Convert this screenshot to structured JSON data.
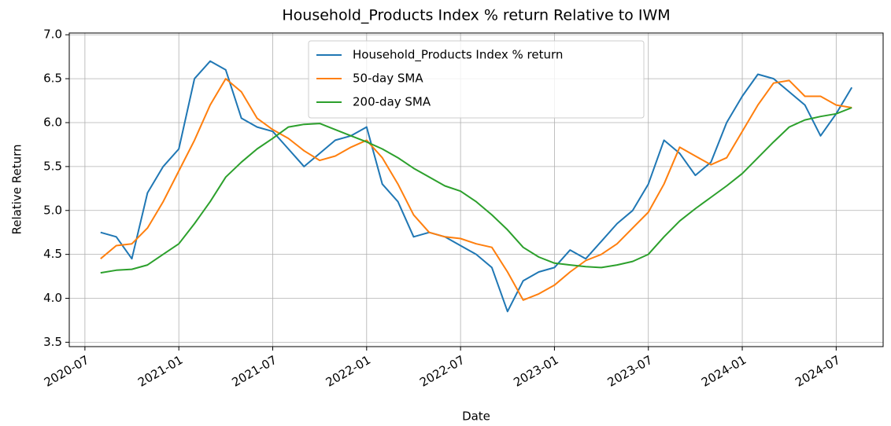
{
  "chart_data": {
    "type": "line",
    "title": "Household_Products Index % return Relative to IWM",
    "xlabel": "Date",
    "ylabel": "Relative Return",
    "x": [
      "2020-08",
      "2020-09",
      "2020-10",
      "2020-11",
      "2020-12",
      "2021-01",
      "2021-02",
      "2021-03",
      "2021-04",
      "2021-05",
      "2021-06",
      "2021-07",
      "2021-08",
      "2021-09",
      "2021-10",
      "2021-11",
      "2021-12",
      "2022-01",
      "2022-02",
      "2022-03",
      "2022-04",
      "2022-05",
      "2022-06",
      "2022-07",
      "2022-08",
      "2022-09",
      "2022-10",
      "2022-11",
      "2022-12",
      "2023-01",
      "2023-02",
      "2023-03",
      "2023-04",
      "2023-05",
      "2023-06",
      "2023-07",
      "2023-08",
      "2023-09",
      "2023-10",
      "2023-11",
      "2023-12",
      "2024-01",
      "2024-02",
      "2024-03",
      "2024-04",
      "2024-05",
      "2024-06",
      "2024-07",
      "2024-08"
    ],
    "series": [
      {
        "name": "Household_Products Index % return",
        "color": "#1f77b4",
        "values": [
          4.75,
          4.7,
          4.45,
          5.2,
          5.5,
          5.7,
          6.5,
          6.7,
          6.6,
          6.05,
          5.95,
          5.9,
          5.7,
          5.5,
          5.65,
          5.8,
          5.85,
          5.95,
          5.3,
          5.1,
          4.7,
          4.75,
          4.7,
          4.6,
          4.5,
          4.35,
          3.85,
          4.2,
          4.3,
          4.35,
          4.55,
          4.45,
          4.65,
          4.85,
          5.0,
          5.3,
          5.8,
          5.65,
          5.4,
          5.55,
          6.0,
          6.3,
          6.55,
          6.5,
          6.35,
          6.2,
          5.85,
          6.1,
          6.4
        ]
      },
      {
        "name": "50-day SMA",
        "color": "#ff7f0e",
        "values": [
          4.45,
          4.6,
          4.62,
          4.8,
          5.1,
          5.45,
          5.8,
          6.2,
          6.5,
          6.35,
          6.05,
          5.92,
          5.82,
          5.68,
          5.57,
          5.62,
          5.72,
          5.8,
          5.6,
          5.3,
          4.95,
          4.75,
          4.7,
          4.68,
          4.62,
          4.58,
          4.3,
          3.98,
          4.05,
          4.15,
          4.3,
          4.43,
          4.5,
          4.62,
          4.8,
          4.98,
          5.3,
          5.72,
          5.62,
          5.52,
          5.6,
          5.9,
          6.2,
          6.45,
          6.48,
          6.3,
          6.3,
          6.2,
          6.17
        ]
      },
      {
        "name": "200-day SMA",
        "color": "#2ca02c",
        "values": [
          4.29,
          4.32,
          4.33,
          4.38,
          4.5,
          4.62,
          4.85,
          5.1,
          5.38,
          5.55,
          5.7,
          5.82,
          5.95,
          5.98,
          5.99,
          5.92,
          5.85,
          5.78,
          5.7,
          5.6,
          5.48,
          5.38,
          5.28,
          5.22,
          5.1,
          4.95,
          4.78,
          4.58,
          4.47,
          4.4,
          4.38,
          4.36,
          4.35,
          4.38,
          4.42,
          4.5,
          4.7,
          4.88,
          5.02,
          5.15,
          5.28,
          5.42,
          5.6,
          5.78,
          5.95,
          6.03,
          6.07,
          6.1,
          6.17
        ]
      }
    ],
    "xlim": [
      "2020-06",
      "2024-10"
    ],
    "xticks": [
      "2020-07",
      "2021-01",
      "2021-07",
      "2022-01",
      "2022-07",
      "2023-01",
      "2023-07",
      "2024-01",
      "2024-07"
    ],
    "ylim": [
      3.45,
      7.02
    ],
    "yticks": [
      3.5,
      {
        "value": 4,
        "label": "4.0"
      },
      4.5,
      {
        "value": 5,
        "label": "5.0"
      },
      5.5,
      {
        "value": 6,
        "label": "6.0"
      },
      6.5,
      {
        "value": 7,
        "label": "7.0"
      }
    ],
    "grid": true,
    "legend": "upper center"
  }
}
